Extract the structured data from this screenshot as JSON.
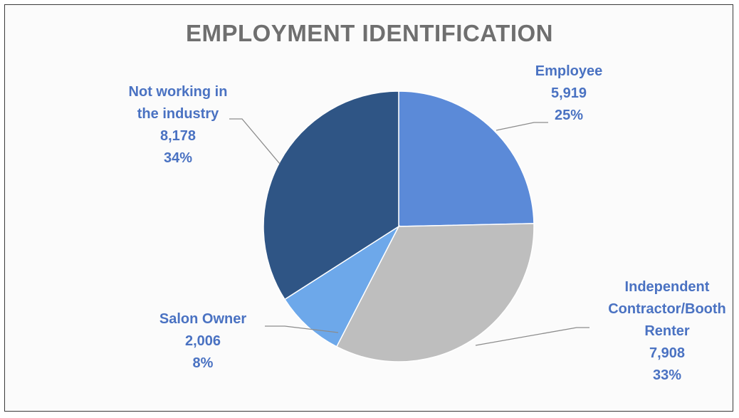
{
  "chart_data": {
    "type": "pie",
    "title": "EMPLOYMENT IDENTIFICATION",
    "slices": [
      {
        "label_lines": [
          "Employee"
        ],
        "value": 5919,
        "value_text": "5,919",
        "percent_text": "25%",
        "color": "#5b8ad8"
      },
      {
        "label_lines": [
          "Independent",
          "Contractor/Booth",
          "Renter"
        ],
        "value": 7908,
        "value_text": "7,908",
        "percent_text": "33%",
        "color": "#bebebe"
      },
      {
        "label_lines": [
          "Salon Owner"
        ],
        "value": 2006,
        "value_text": "2,006",
        "percent_text": "8%",
        "color": "#6da8ea"
      },
      {
        "label_lines": [
          "Not working in",
          "the industry"
        ],
        "value": 8178,
        "value_text": "8,178",
        "percent_text": "34%",
        "color": "#2f5585"
      }
    ],
    "label_color": "#4a72c2",
    "title_color": "#6f6f6f",
    "legend": "none"
  }
}
